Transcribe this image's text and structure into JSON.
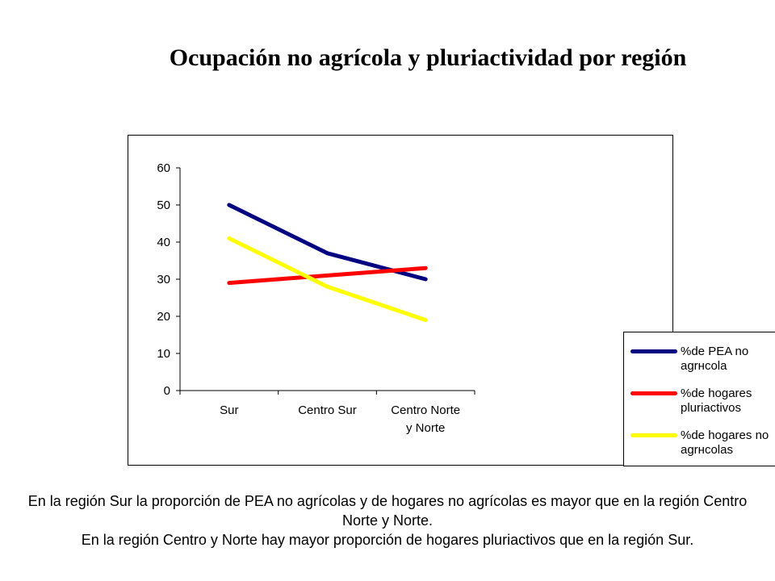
{
  "slide": {
    "title": "Ocupación no agrícola y pluriactividad por región",
    "caption_lines": [
      "En la región Sur la proporción de PEA no agrícolas y de hogares no agrícolas es mayor que en la región Centro Norte y Norte.",
      "En la región Centro y Norte hay mayor proporción de hogares pluriactivos que en la región Sur."
    ]
  },
  "chart_data": {
    "type": "line",
    "categories": [
      "Sur",
      "Centro Sur",
      "Centro Norte y Norte"
    ],
    "category_lines": [
      [
        "Sur"
      ],
      [
        "Centro Sur"
      ],
      [
        "Centro Norte",
        "y Norte"
      ]
    ],
    "ylim": [
      0,
      60
    ],
    "yticks": [
      0,
      10,
      20,
      30,
      40,
      50,
      60
    ],
    "grid": false,
    "legend_position": "right",
    "series": [
      {
        "name": "%de PEA no agrнcola",
        "name_lines": [
          "%de PEA no",
          "agrнcola"
        ],
        "color": "#000080",
        "values": [
          50,
          37,
          30
        ]
      },
      {
        "name": "%de hogares pluriactivos",
        "name_lines": [
          "%de hogares",
          "pluriactivos"
        ],
        "color": "#ff0000",
        "values": [
          29,
          31,
          33
        ]
      },
      {
        "name": "%de hogares no agrнcolas",
        "name_lines": [
          "%de hogares no",
          "agrнcolas"
        ],
        "color": "#ffff00",
        "values": [
          41,
          28,
          19
        ]
      }
    ]
  }
}
